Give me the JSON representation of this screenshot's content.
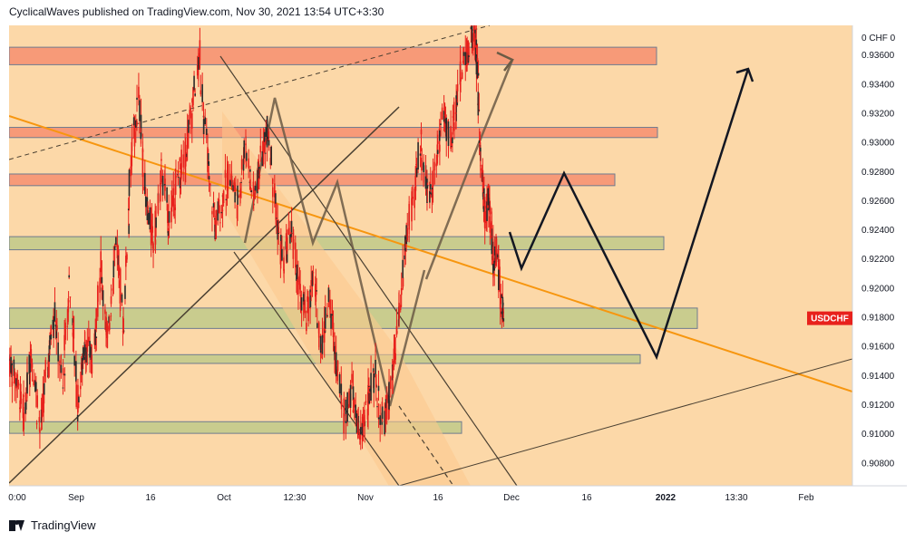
{
  "header": {
    "author": "CyclicalWaves",
    "published_text": "published on TradingView.com,",
    "timestamp": "Nov 30, 2021 13:54 UTC+3:30"
  },
  "footer": {
    "brand": "TradingView"
  },
  "colors": {
    "background": "#fcd8a8",
    "candle": "#e8211c",
    "trendline_orange": "#f7960f",
    "channel_line": "#4a4032",
    "resistance_zone": "#f79a78",
    "support_zone": "#c9cc8e",
    "price_tag": "#e8211c"
  },
  "chart_data": {
    "type": "candlestick",
    "symbol_tag": "USDCHF",
    "axis_currency_label": "0 CHF 0",
    "y_range": [
      0.9064,
      0.938
    ],
    "y_ticks": [
      "0.93600",
      "0.93400",
      "0.93200",
      "0.93000",
      "0.92800",
      "0.92600",
      "0.92400",
      "0.92200",
      "0.92000",
      "0.91800",
      "0.91600",
      "0.91400",
      "0.91200",
      "0.91000",
      "0.90800"
    ],
    "x_ticks": [
      {
        "label": "0:00",
        "bold": false
      },
      {
        "label": "Sep",
        "bold": false
      },
      {
        "label": "16",
        "bold": false
      },
      {
        "label": "Oct",
        "bold": false
      },
      {
        "label": "12:30",
        "bold": false
      },
      {
        "label": "Nov",
        "bold": false
      },
      {
        "label": "16",
        "bold": false
      },
      {
        "label": "Dec",
        "bold": false
      },
      {
        "label": "16",
        "bold": false
      },
      {
        "label": "2022",
        "bold": true
      },
      {
        "label": "13:30",
        "bold": false
      },
      {
        "label": "Feb",
        "bold": false
      }
    ],
    "price_path": [
      [
        0,
        0.915
      ],
      [
        0.02,
        0.9135
      ],
      [
        0.04,
        0.9113
      ],
      [
        0.06,
        0.9158
      ],
      [
        0.08,
        0.9102
      ],
      [
        0.1,
        0.9145
      ],
      [
        0.12,
        0.9185
      ],
      [
        0.14,
        0.913
      ],
      [
        0.16,
        0.9205
      ],
      [
        0.18,
        0.9118
      ],
      [
        0.2,
        0.9162
      ],
      [
        0.22,
        0.915
      ],
      [
        0.24,
        0.9215
      ],
      [
        0.26,
        0.916
      ],
      [
        0.28,
        0.9235
      ],
      [
        0.3,
        0.917
      ],
      [
        0.32,
        0.9285
      ],
      [
        0.34,
        0.933
      ],
      [
        0.36,
        0.926
      ],
      [
        0.38,
        0.923
      ],
      [
        0.4,
        0.928
      ],
      [
        0.42,
        0.9245
      ],
      [
        0.44,
        0.927
      ],
      [
        0.46,
        0.929
      ],
      [
        0.48,
        0.932
      ],
      [
        0.5,
        0.936
      ],
      [
        0.52,
        0.929
      ],
      [
        0.54,
        0.924
      ],
      [
        0.56,
        0.926
      ],
      [
        0.58,
        0.928
      ],
      [
        0.6,
        0.9255
      ],
      [
        0.62,
        0.93
      ],
      [
        0.64,
        0.926
      ],
      [
        0.66,
        0.9285
      ],
      [
        0.68,
        0.931
      ],
      [
        0.7,
        0.925
      ],
      [
        0.72,
        0.9215
      ],
      [
        0.74,
        0.924
      ],
      [
        0.76,
        0.92
      ],
      [
        0.78,
        0.918
      ],
      [
        0.8,
        0.9205
      ],
      [
        0.82,
        0.916
      ],
      [
        0.84,
        0.919
      ],
      [
        0.86,
        0.915
      ],
      [
        0.88,
        0.911
      ],
      [
        0.9,
        0.913
      ],
      [
        0.92,
        0.9095
      ],
      [
        0.94,
        0.912
      ],
      [
        0.96,
        0.914
      ],
      [
        0.98,
        0.9105
      ],
      [
        1.0,
        0.9125
      ],
      [
        1.02,
        0.917
      ],
      [
        1.04,
        0.9225
      ],
      [
        1.06,
        0.926
      ],
      [
        1.08,
        0.93
      ],
      [
        1.1,
        0.926
      ],
      [
        1.12,
        0.9285
      ],
      [
        1.14,
        0.932
      ],
      [
        1.16,
        0.93
      ],
      [
        1.18,
        0.934
      ],
      [
        1.2,
        0.936
      ],
      [
        1.22,
        0.9375
      ],
      [
        1.23,
        0.935
      ],
      [
        1.24,
        0.9285
      ],
      [
        1.25,
        0.925
      ],
      [
        1.26,
        0.9262
      ],
      [
        1.27,
        0.9215
      ],
      [
        1.28,
        0.923
      ],
      [
        1.29,
        0.9195
      ],
      [
        1.3,
        0.9179
      ]
    ],
    "resistance_zones": [
      {
        "top": 0.9365,
        "bottom": 0.9353
      },
      {
        "top": 0.931,
        "bottom": 0.9303
      },
      {
        "top": 0.9278,
        "bottom": 0.927
      }
    ],
    "support_zones": [
      {
        "top": 0.9235,
        "bottom": 0.9226
      },
      {
        "top": 0.9186,
        "bottom": 0.9172
      },
      {
        "top": 0.9154,
        "bottom": 0.9148
      },
      {
        "top": 0.9108,
        "bottom": 0.91
      }
    ],
    "last_price": 0.9179
  }
}
